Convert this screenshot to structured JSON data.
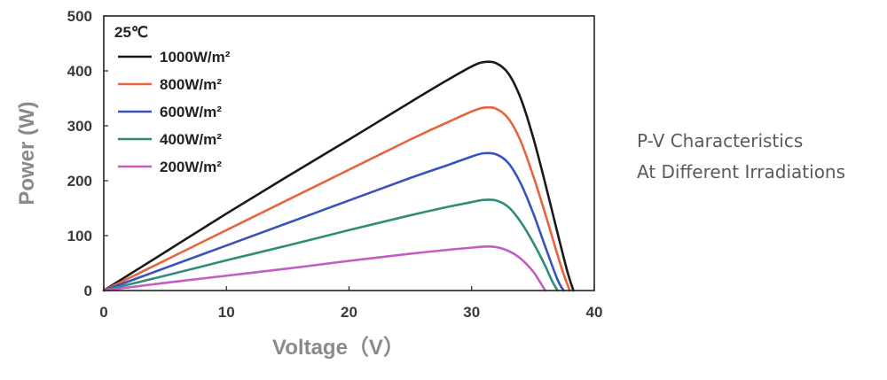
{
  "colors": {
    "series_1000": "#1a1a1a",
    "series_800": "#e8643c",
    "series_600": "#3a52bd",
    "series_400": "#2f8c78",
    "series_200": "#c45cc4",
    "axis_title": "#8a8a8a",
    "tick_label": "#3a3a3a",
    "caption": "#5a5a5a"
  },
  "caption": {
    "line1": "P-V Characteristics",
    "line2": "At Different Irradiations"
  },
  "chart_data": {
    "type": "line",
    "xlabel": "Voltage（V）",
    "ylabel": "Power (W)",
    "xlim": [
      0,
      40
    ],
    "ylim": [
      0,
      500
    ],
    "xticks": [
      0,
      10,
      20,
      30,
      40
    ],
    "yticks": [
      0,
      100,
      200,
      300,
      400,
      500
    ],
    "grid": false,
    "legend_title": "25℃",
    "legend_position": "top-left",
    "series": [
      {
        "name": "1000W/m²",
        "x": [
          0,
          5,
          10,
          15,
          20,
          25,
          28,
          30,
          31,
          32,
          33,
          34,
          35,
          36,
          37,
          37.8,
          38.3
        ],
        "values": [
          0,
          70,
          140,
          208,
          275,
          343,
          383,
          408,
          416,
          414,
          395,
          350,
          280,
          195,
          105,
          35,
          0
        ]
      },
      {
        "name": "800W/m²",
        "x": [
          0,
          5,
          10,
          15,
          20,
          25,
          28,
          30,
          31,
          32,
          33,
          34,
          35,
          36,
          37,
          37.5,
          38.0
        ],
        "values": [
          0,
          55,
          110,
          165,
          220,
          275,
          306,
          326,
          333,
          331,
          313,
          272,
          210,
          140,
          65,
          30,
          0
        ]
      },
      {
        "name": "600W/m²",
        "x": [
          0,
          5,
          10,
          15,
          20,
          25,
          28,
          30,
          31,
          32,
          33,
          34,
          35,
          36,
          37,
          37.5
        ],
        "values": [
          0,
          41,
          82,
          123,
          164,
          205,
          228,
          244,
          250,
          248,
          232,
          195,
          142,
          80,
          20,
          0
        ]
      },
      {
        "name": "400W/m²",
        "x": [
          0,
          5,
          10,
          15,
          20,
          25,
          28,
          30,
          31,
          32,
          33,
          34,
          35,
          36,
          36.5,
          37.0
        ],
        "values": [
          0,
          27,
          55,
          82,
          110,
          137,
          152,
          161,
          165,
          164,
          152,
          125,
          88,
          45,
          20,
          0
        ]
      },
      {
        "name": "200W/m²",
        "x": [
          0,
          5,
          10,
          15,
          20,
          25,
          28,
          30,
          31,
          32,
          33,
          34,
          35,
          35.5,
          36.0
        ],
        "values": [
          0,
          14,
          27,
          40,
          54,
          67,
          74,
          78,
          80,
          79,
          72,
          58,
          35,
          18,
          0
        ]
      }
    ]
  }
}
